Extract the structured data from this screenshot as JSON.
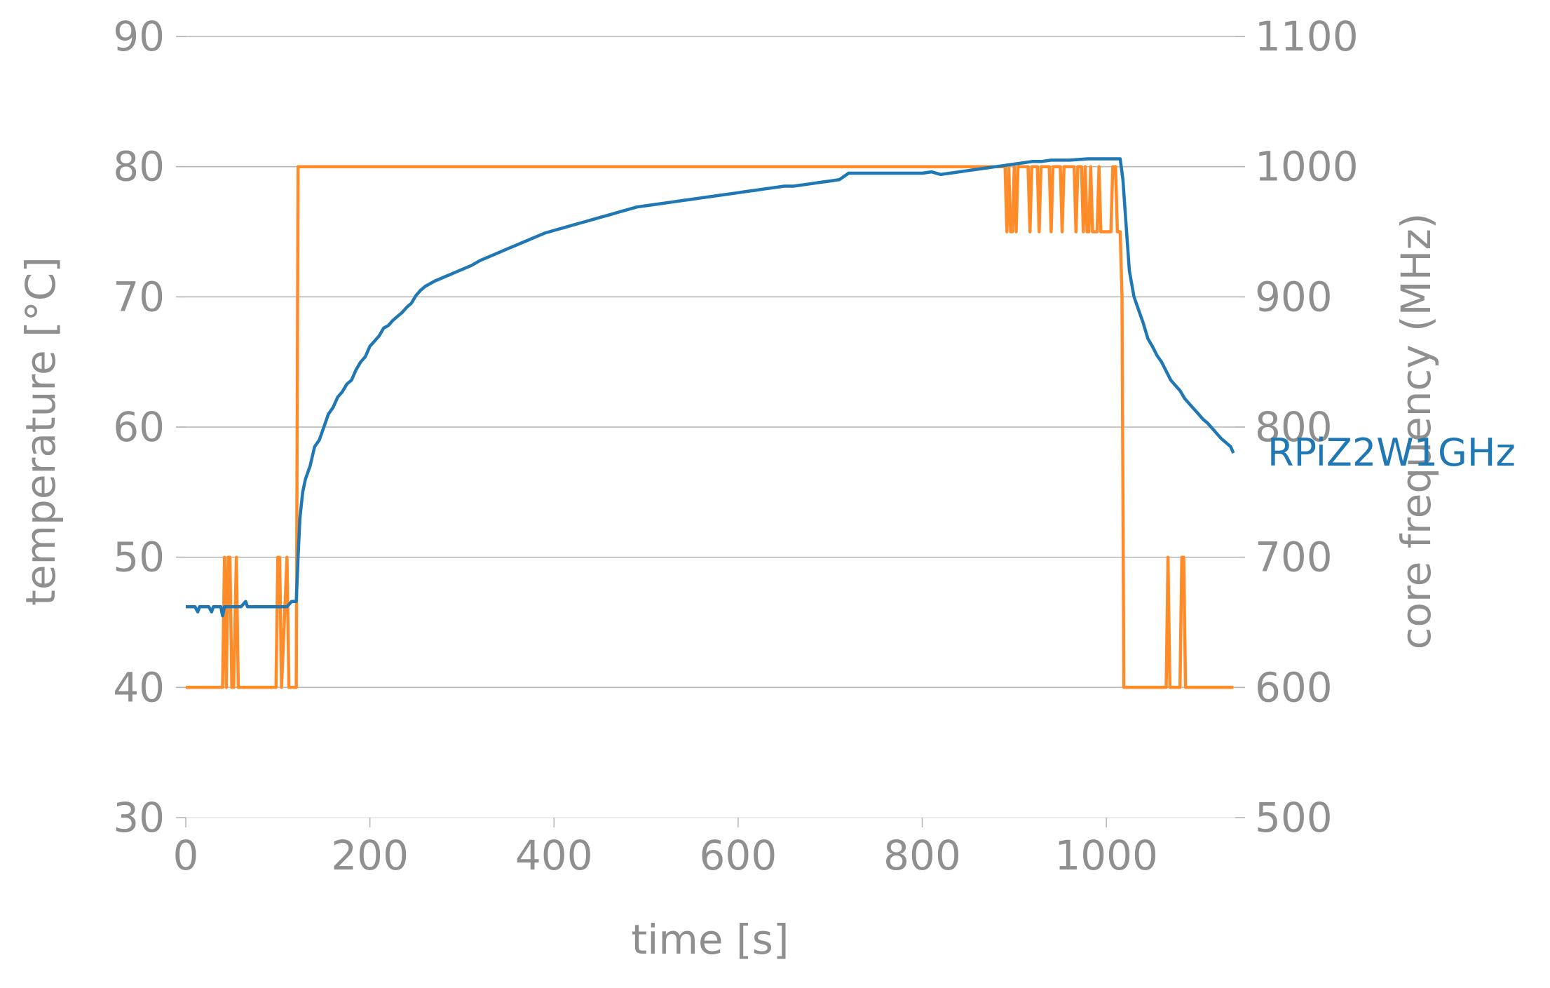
{
  "chart_data": {
    "type": "line",
    "title": "",
    "xlabel": "time [s]",
    "ylabel": "temperature [°C]",
    "y2label": "core frequency (MHz)",
    "xlim": [
      0,
      1140
    ],
    "ylim": [
      30,
      90
    ],
    "y2lim": [
      500,
      1100
    ],
    "x_ticks": [
      0,
      200,
      400,
      600,
      800,
      1000
    ],
    "y_ticks": [
      30,
      40,
      50,
      60,
      70,
      80,
      90
    ],
    "y2_ticks": [
      500,
      600,
      700,
      800,
      900,
      1000,
      1100
    ],
    "grid": "horizontal",
    "legend": "none",
    "series": [
      {
        "name": "RPiZ2W1GHz",
        "axis": "left",
        "color": "#1f77b4",
        "points": [
          [
            0,
            46.2
          ],
          [
            10,
            46.2
          ],
          [
            13,
            45.8
          ],
          [
            15,
            46.2
          ],
          [
            25,
            46.2
          ],
          [
            28,
            45.8
          ],
          [
            30,
            46.2
          ],
          [
            38,
            46.2
          ],
          [
            40,
            45.5
          ],
          [
            42,
            46.2
          ],
          [
            50,
            46.2
          ],
          [
            60,
            46.2
          ],
          [
            65,
            46.6
          ],
          [
            67,
            46.2
          ],
          [
            80,
            46.2
          ],
          [
            90,
            46.2
          ],
          [
            100,
            46.2
          ],
          [
            110,
            46.2
          ],
          [
            115,
            46.6
          ],
          [
            120,
            46.6
          ],
          [
            122,
            50
          ],
          [
            124,
            53
          ],
          [
            127,
            55
          ],
          [
            130,
            56
          ],
          [
            135,
            57
          ],
          [
            140,
            58.5
          ],
          [
            145,
            59
          ],
          [
            150,
            60
          ],
          [
            155,
            61
          ],
          [
            160,
            61.5
          ],
          [
            165,
            62.3
          ],
          [
            170,
            62.7
          ],
          [
            175,
            63.3
          ],
          [
            180,
            63.6
          ],
          [
            185,
            64.4
          ],
          [
            190,
            65
          ],
          [
            195,
            65.4
          ],
          [
            200,
            66.2
          ],
          [
            205,
            66.6
          ],
          [
            210,
            67
          ],
          [
            215,
            67.6
          ],
          [
            220,
            67.8
          ],
          [
            225,
            68.2
          ],
          [
            230,
            68.5
          ],
          [
            235,
            68.8
          ],
          [
            240,
            69.2
          ],
          [
            245,
            69.5
          ],
          [
            250,
            70.1
          ],
          [
            255,
            70.5
          ],
          [
            260,
            70.8
          ],
          [
            270,
            71.2
          ],
          [
            280,
            71.5
          ],
          [
            290,
            71.8
          ],
          [
            300,
            72.1
          ],
          [
            310,
            72.4
          ],
          [
            320,
            72.8
          ],
          [
            330,
            73.1
          ],
          [
            340,
            73.4
          ],
          [
            350,
            73.7
          ],
          [
            360,
            74.0
          ],
          [
            370,
            74.3
          ],
          [
            380,
            74.6
          ],
          [
            390,
            74.9
          ],
          [
            400,
            75.1
          ],
          [
            410,
            75.3
          ],
          [
            420,
            75.5
          ],
          [
            430,
            75.7
          ],
          [
            440,
            75.9
          ],
          [
            450,
            76.1
          ],
          [
            460,
            76.3
          ],
          [
            470,
            76.5
          ],
          [
            480,
            76.7
          ],
          [
            490,
            76.9
          ],
          [
            500,
            77.0
          ],
          [
            510,
            77.1
          ],
          [
            520,
            77.2
          ],
          [
            530,
            77.3
          ],
          [
            540,
            77.4
          ],
          [
            550,
            77.5
          ],
          [
            560,
            77.6
          ],
          [
            570,
            77.7
          ],
          [
            580,
            77.8
          ],
          [
            590,
            77.9
          ],
          [
            600,
            78.0
          ],
          [
            610,
            78.1
          ],
          [
            620,
            78.2
          ],
          [
            630,
            78.3
          ],
          [
            640,
            78.4
          ],
          [
            650,
            78.5
          ],
          [
            660,
            78.5
          ],
          [
            670,
            78.6
          ],
          [
            680,
            78.7
          ],
          [
            690,
            78.8
          ],
          [
            700,
            78.9
          ],
          [
            710,
            79.0
          ],
          [
            720,
            79.5
          ],
          [
            740,
            79.5
          ],
          [
            760,
            79.5
          ],
          [
            780,
            79.5
          ],
          [
            800,
            79.5
          ],
          [
            810,
            79.6
          ],
          [
            820,
            79.4
          ],
          [
            830,
            79.5
          ],
          [
            840,
            79.6
          ],
          [
            850,
            79.7
          ],
          [
            860,
            79.8
          ],
          [
            870,
            79.9
          ],
          [
            880,
            80.0
          ],
          [
            890,
            80.1
          ],
          [
            900,
            80.2
          ],
          [
            910,
            80.3
          ],
          [
            920,
            80.4
          ],
          [
            930,
            80.4
          ],
          [
            940,
            80.5
          ],
          [
            960,
            80.5
          ],
          [
            980,
            80.6
          ],
          [
            1000,
            80.6
          ],
          [
            1010,
            80.6
          ],
          [
            1015,
            80.6
          ],
          [
            1018,
            79
          ],
          [
            1022,
            75
          ],
          [
            1025,
            72
          ],
          [
            1030,
            70
          ],
          [
            1035,
            69
          ],
          [
            1040,
            68
          ],
          [
            1045,
            66.8
          ],
          [
            1050,
            66.2
          ],
          [
            1055,
            65.5
          ],
          [
            1060,
            65
          ],
          [
            1065,
            64.3
          ],
          [
            1070,
            63.6
          ],
          [
            1075,
            63.2
          ],
          [
            1080,
            62.8
          ],
          [
            1085,
            62.2
          ],
          [
            1090,
            61.8
          ],
          [
            1095,
            61.4
          ],
          [
            1100,
            61
          ],
          [
            1105,
            60.6
          ],
          [
            1110,
            60.3
          ],
          [
            1115,
            59.9
          ],
          [
            1120,
            59.5
          ],
          [
            1125,
            59.1
          ],
          [
            1130,
            58.8
          ],
          [
            1135,
            58.5
          ],
          [
            1138,
            58
          ]
        ]
      },
      {
        "name": "",
        "axis": "right",
        "color": "#ff8c28",
        "points": [
          [
            0,
            600
          ],
          [
            40,
            600
          ],
          [
            42,
            700
          ],
          [
            44,
            600
          ],
          [
            46,
            700
          ],
          [
            48,
            700
          ],
          [
            50,
            600
          ],
          [
            52,
            600
          ],
          [
            55,
            700
          ],
          [
            57,
            600
          ],
          [
            60,
            600
          ],
          [
            98,
            600
          ],
          [
            100,
            700
          ],
          [
            102,
            700
          ],
          [
            104,
            600
          ],
          [
            110,
            700
          ],
          [
            112,
            600
          ],
          [
            120,
            600
          ],
          [
            122,
            1000
          ],
          [
            890,
            1000
          ],
          [
            892,
            950
          ],
          [
            894,
            1000
          ],
          [
            896,
            950
          ],
          [
            898,
            950
          ],
          [
            900,
            1000
          ],
          [
            902,
            950
          ],
          [
            904,
            1000
          ],
          [
            915,
            1000
          ],
          [
            917,
            950
          ],
          [
            919,
            1000
          ],
          [
            925,
            1000
          ],
          [
            927,
            950
          ],
          [
            929,
            1000
          ],
          [
            938,
            1000
          ],
          [
            940,
            950
          ],
          [
            942,
            1000
          ],
          [
            950,
            1000
          ],
          [
            952,
            950
          ],
          [
            954,
            1000
          ],
          [
            965,
            1000
          ],
          [
            967,
            950
          ],
          [
            969,
            1000
          ],
          [
            973,
            1000
          ],
          [
            975,
            950
          ],
          [
            977,
            1000
          ],
          [
            979,
            950
          ],
          [
            981,
            950
          ],
          [
            983,
            1000
          ],
          [
            985,
            950
          ],
          [
            987,
            950
          ],
          [
            990,
            950
          ],
          [
            992,
            1000
          ],
          [
            994,
            950
          ],
          [
            1000,
            950
          ],
          [
            1005,
            950
          ],
          [
            1007,
            1000
          ],
          [
            1010,
            1000
          ],
          [
            1012,
            950
          ],
          [
            1015,
            950
          ],
          [
            1017,
            900
          ],
          [
            1019,
            600
          ],
          [
            1065,
            600
          ],
          [
            1067,
            700
          ],
          [
            1069,
            600
          ],
          [
            1080,
            600
          ],
          [
            1082,
            700
          ],
          [
            1084,
            700
          ],
          [
            1086,
            600
          ],
          [
            1138,
            600
          ]
        ]
      }
    ],
    "annotations": [
      {
        "text": "RPiZ2W1GHz",
        "color": "#1f77b4"
      }
    ]
  }
}
